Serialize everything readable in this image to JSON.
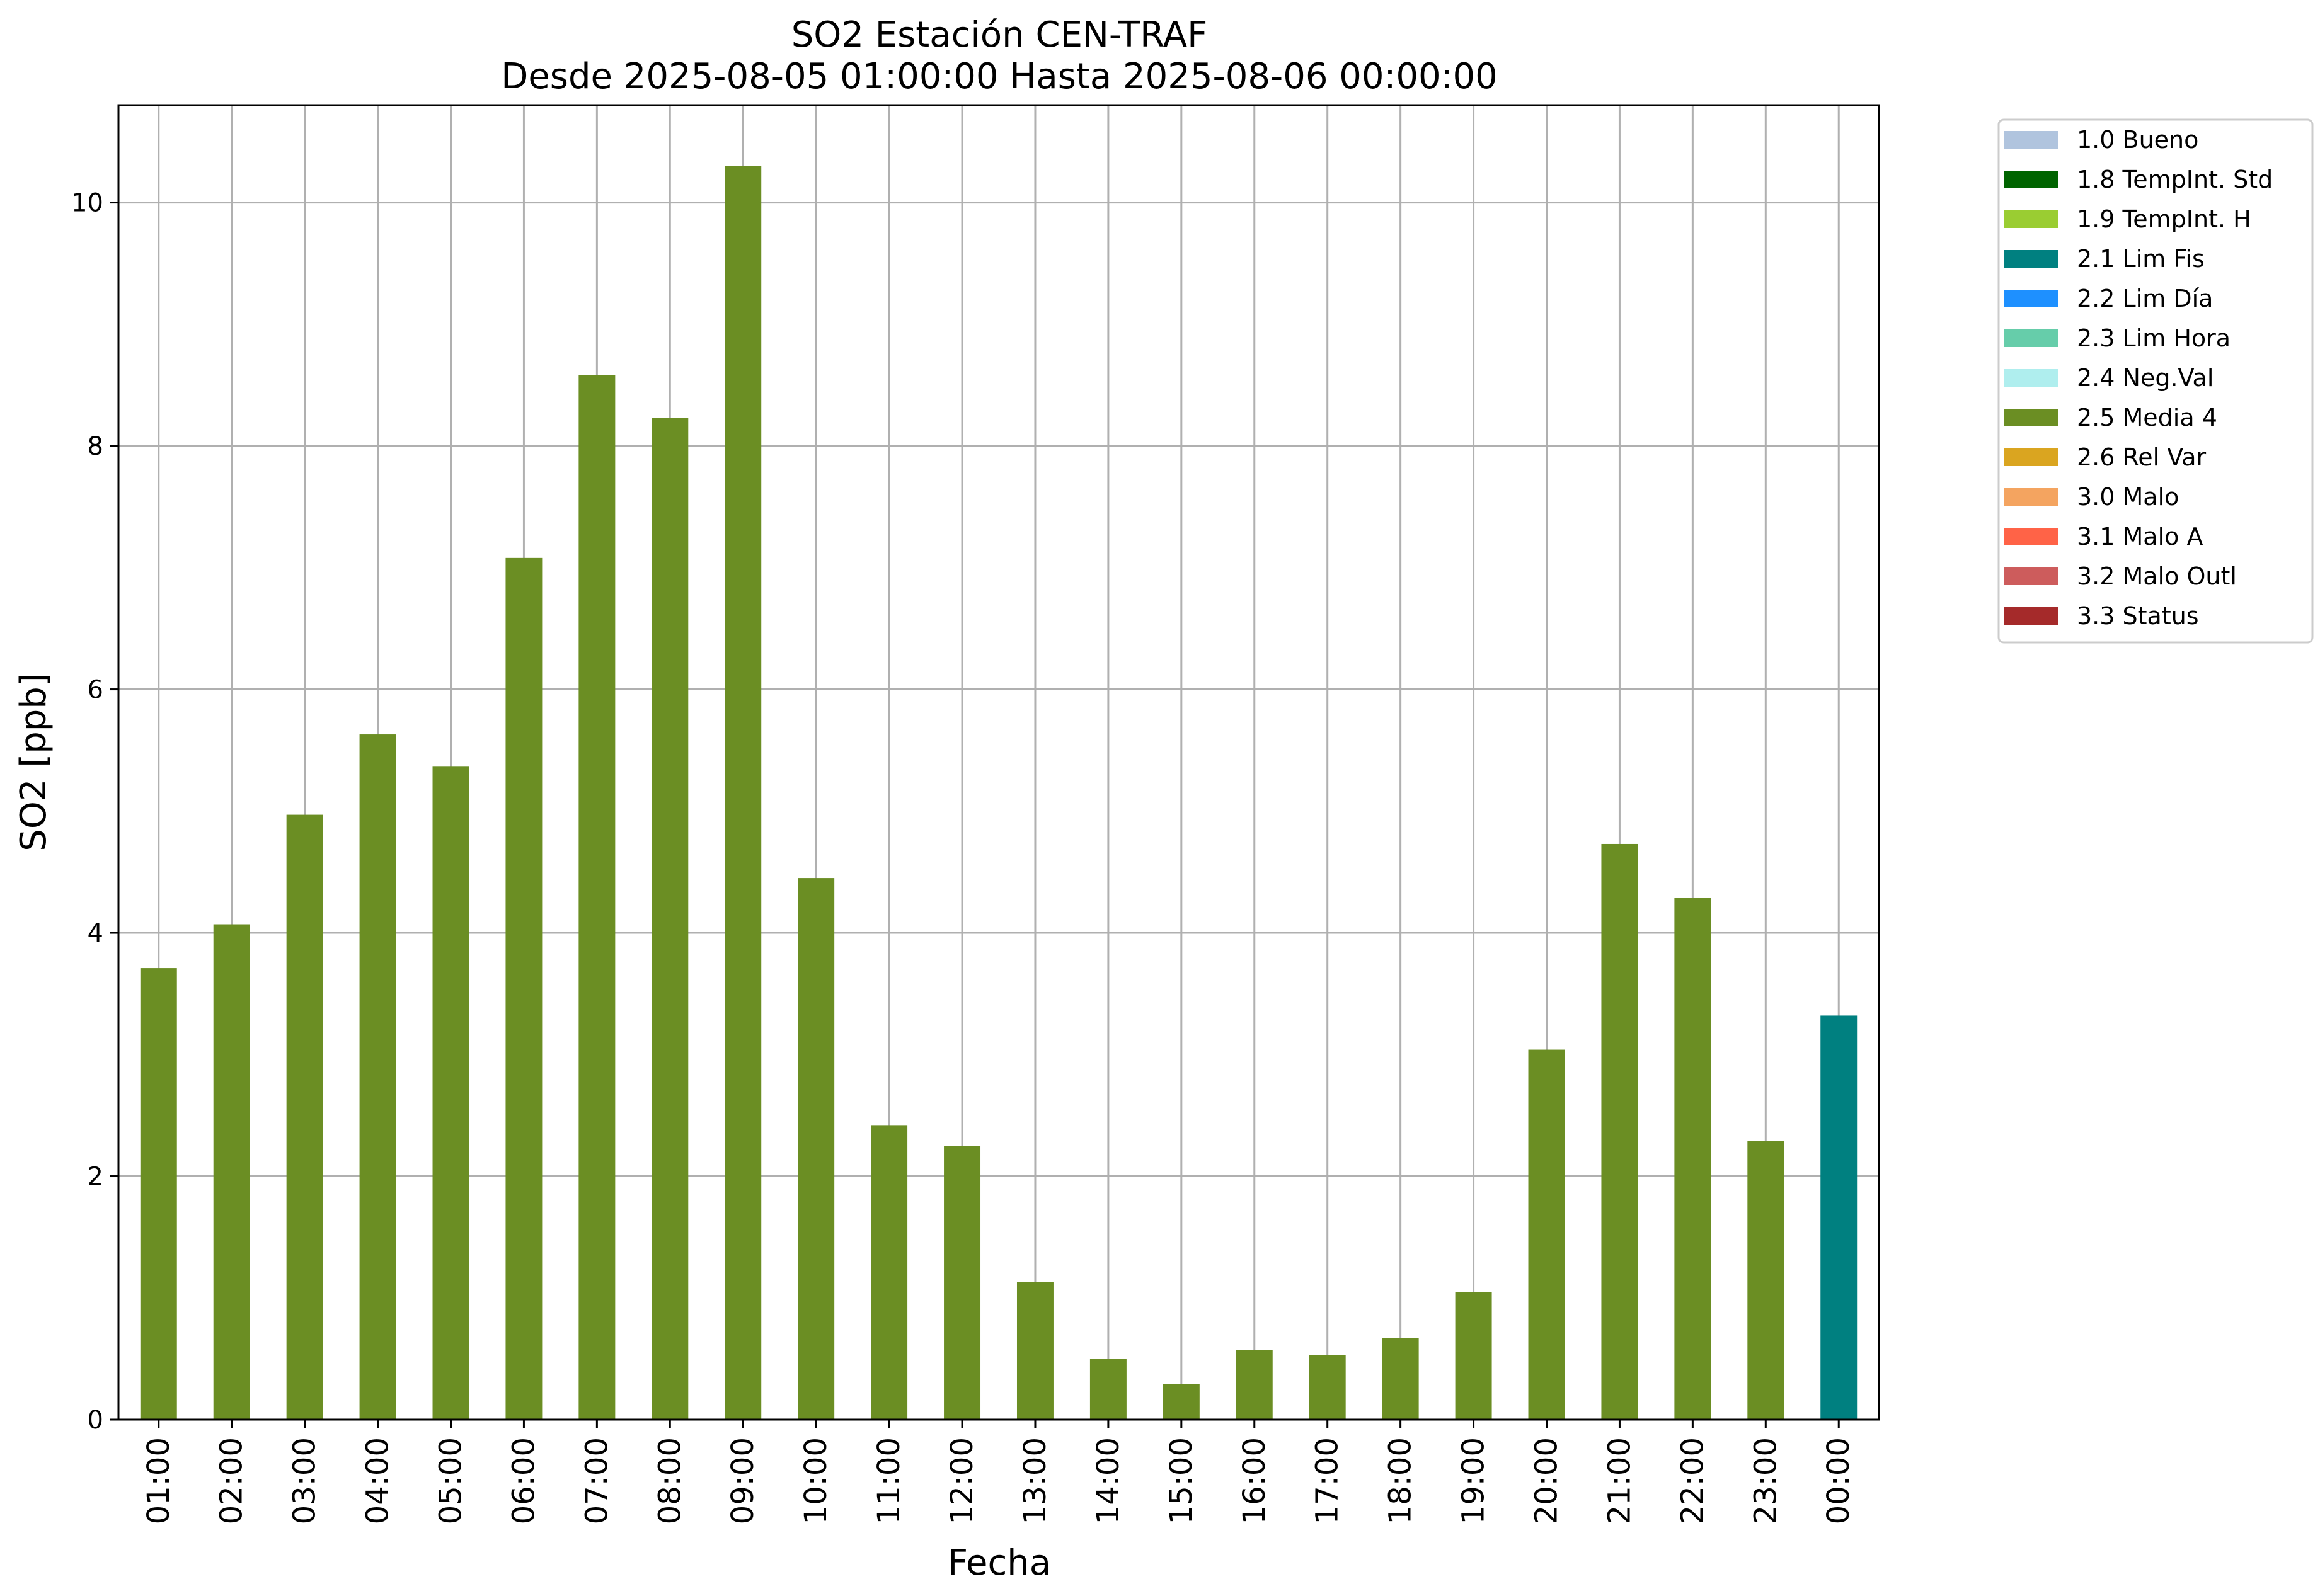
{
  "chart_data": {
    "type": "bar",
    "title": "SO2 Estación CEN-TRAF",
    "subtitle": "Desde 2025-08-05 01:00:00 Hasta 2025-08-06 00:00:00",
    "xlabel": "Fecha",
    "ylabel": "SO2 [ppb]",
    "ylim": [
      0,
      10.8
    ],
    "yticks": [
      "0",
      "2",
      "4",
      "6",
      "8",
      "10"
    ],
    "grid": true,
    "legend_position": "outside-top-right",
    "categories": [
      "01:00",
      "02:00",
      "03:00",
      "04:00",
      "05:00",
      "06:00",
      "07:00",
      "08:00",
      "09:00",
      "10:00",
      "11:00",
      "12:00",
      "13:00",
      "14:00",
      "15:00",
      "16:00",
      "17:00",
      "18:00",
      "19:00",
      "20:00",
      "21:00",
      "22:00",
      "23:00",
      "00:00"
    ],
    "values": [
      3.71,
      4.07,
      4.97,
      5.63,
      5.37,
      7.08,
      8.58,
      8.23,
      10.3,
      4.45,
      2.42,
      2.25,
      1.13,
      0.5,
      0.29,
      0.57,
      0.53,
      0.67,
      1.05,
      3.04,
      4.73,
      4.29,
      2.29,
      3.32
    ],
    "flags": [
      "2.5 Media 4",
      "2.5 Media 4",
      "2.5 Media 4",
      "2.5 Media 4",
      "2.5 Media 4",
      "2.5 Media 4",
      "2.5 Media 4",
      "2.5 Media 4",
      "2.5 Media 4",
      "2.5 Media 4",
      "2.5 Media 4",
      "2.5 Media 4",
      "2.5 Media 4",
      "2.5 Media 4",
      "2.5 Media 4",
      "2.5 Media 4",
      "2.5 Media 4",
      "2.5 Media 4",
      "2.5 Media 4",
      "2.5 Media 4",
      "2.5 Media 4",
      "2.5 Media 4",
      "2.5 Media 4",
      "2.1 Lim Fis"
    ],
    "legend": [
      {
        "label": "1.0 Bueno",
        "color": "#b0c4de"
      },
      {
        "label": "1.8 TempInt. Std",
        "color": "#006400"
      },
      {
        "label": "1.9 TempInt. H",
        "color": "#9acd32"
      },
      {
        "label": "2.1 Lim Fis",
        "color": "#008080"
      },
      {
        "label": "2.2 Lim Día",
        "color": "#1e90ff"
      },
      {
        "label": "2.3 Lim Hora",
        "color": "#66cdaa"
      },
      {
        "label": "2.4 Neg.Val",
        "color": "#afeeee"
      },
      {
        "label": "2.5 Media 4",
        "color": "#6b8e23"
      },
      {
        "label": "2.6 Rel Var",
        "color": "#daa520"
      },
      {
        "label": "3.0 Malo",
        "color": "#f4a460"
      },
      {
        "label": "3.1 Malo A",
        "color": "#ff6347"
      },
      {
        "label": "3.2 Malo Outl",
        "color": "#cd5c5c"
      },
      {
        "label": "3.3 Status",
        "color": "#a52a2a"
      }
    ]
  }
}
